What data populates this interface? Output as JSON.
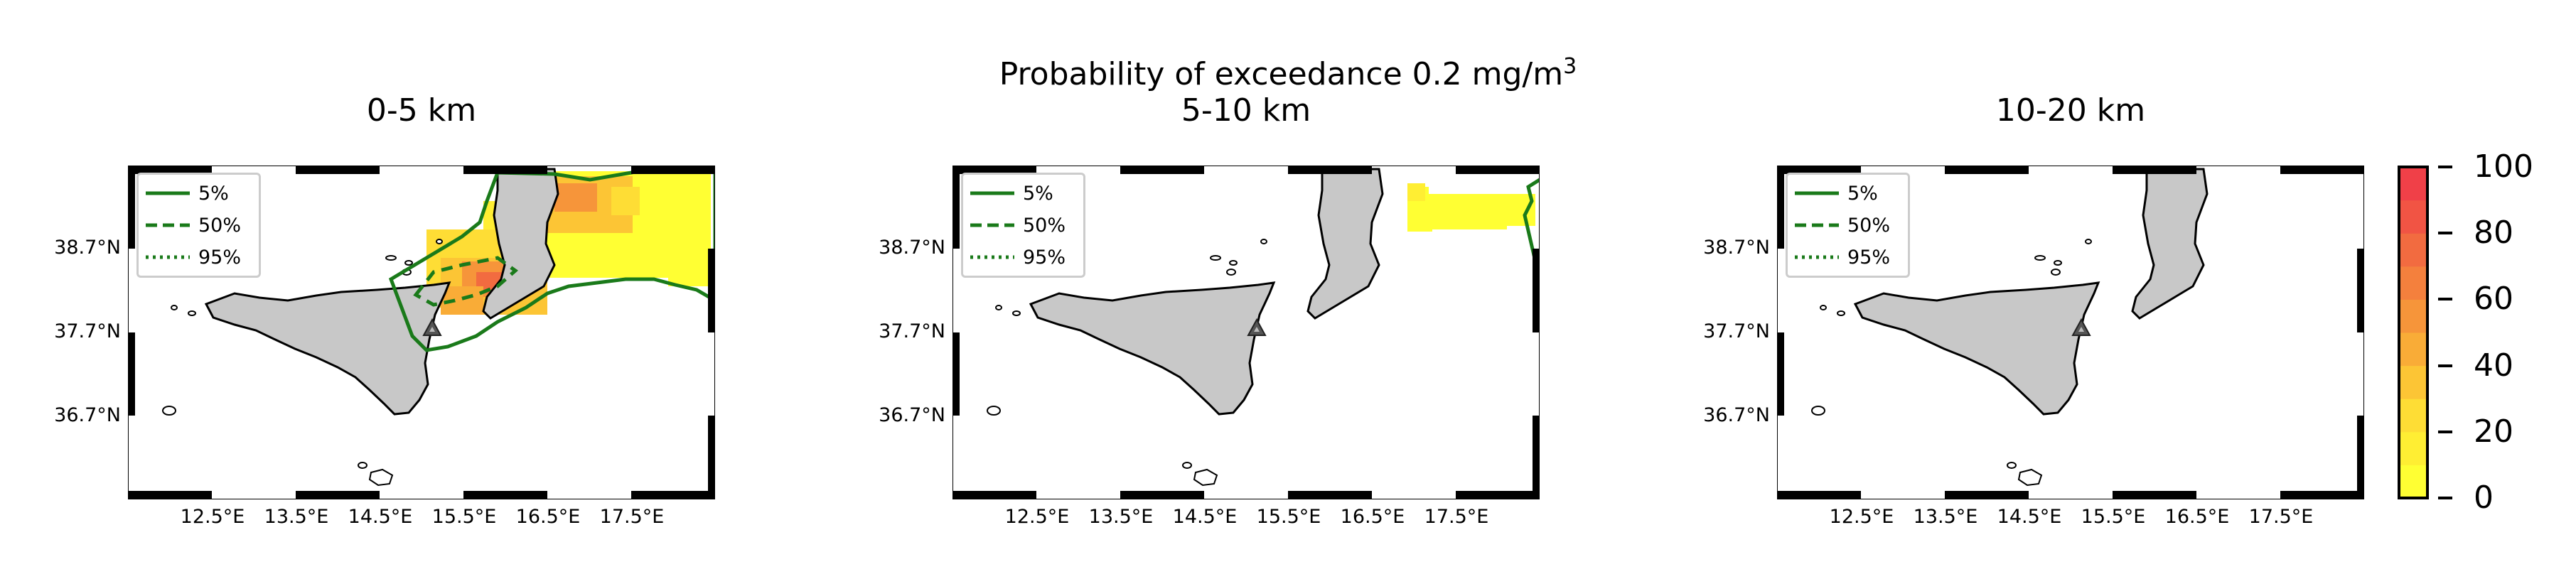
{
  "figure": {
    "suptitle_line1": "Probability of exceedance 0.2 mg/m",
    "suptitle_sup": "3",
    "panels": [
      {
        "title": "0-5 km"
      },
      {
        "title": "5-10 km"
      },
      {
        "title": "10-20 km"
      }
    ],
    "lat_labels": [
      "38.7°N",
      "37.7°N",
      "36.7°N"
    ],
    "lon_labels": [
      "12.5°E",
      "13.5°E",
      "14.5°E",
      "15.5°E",
      "16.5°E",
      "17.5°E"
    ],
    "legend": [
      {
        "label": "5%",
        "style": "solid"
      },
      {
        "label": "50%",
        "style": "dashed"
      },
      {
        "label": "95%",
        "style": "dotted"
      }
    ],
    "contour_color": "#1a7a1a",
    "colorbar": {
      "ticks": [
        "0",
        "20",
        "40",
        "60",
        "80",
        "100"
      ],
      "colors": [
        "#ffff33",
        "#ffee33",
        "#fedd35",
        "#fcc535",
        "#f9ac37",
        "#f6953a",
        "#f4803d",
        "#f26b40",
        "#f15444",
        "#f04048"
      ]
    }
  }
}
